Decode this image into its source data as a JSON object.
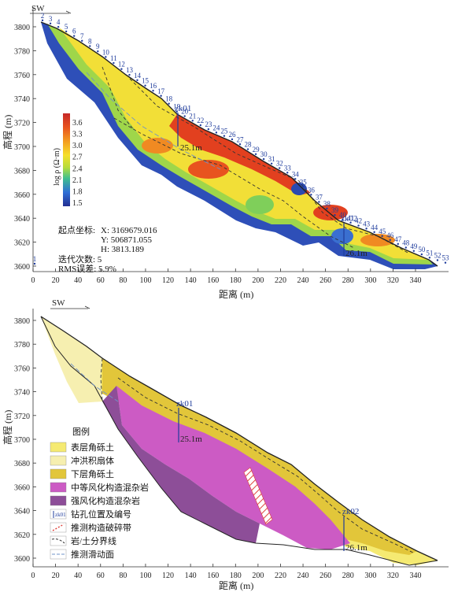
{
  "top_panel": {
    "direction_label": "SW",
    "y_axis_label": "高程 (m)",
    "x_axis_label": "距离 (m)",
    "y_ticks": [
      "3600",
      "3620",
      "3640",
      "3660",
      "3680",
      "3700",
      "3720",
      "3740",
      "3760",
      "3780",
      "3800"
    ],
    "x_ticks": [
      "0",
      "20",
      "40",
      "60",
      "80",
      "100",
      "120",
      "140",
      "160",
      "180",
      "200",
      "220",
      "240",
      "260",
      "280",
      "300",
      "320",
      "340"
    ],
    "colorbar_label": "log ρ (Ω·m)",
    "colorbar_ticks": [
      "3.6",
      "3.3",
      "3.0",
      "2.7",
      "2.4",
      "2.1",
      "1.8",
      "1.5"
    ],
    "electrodes": [
      "1",
      "2",
      "3",
      "4",
      "5",
      "6",
      "7",
      "8",
      "9",
      "10",
      "11",
      "12",
      "13",
      "14",
      "15",
      "16",
      "17",
      "18",
      "19",
      "20",
      "21",
      "22",
      "23",
      "24",
      "25",
      "26",
      "27",
      "28",
      "29",
      "30",
      "31",
      "32",
      "33",
      "34",
      "35",
      "36",
      "37",
      "38",
      "39",
      "40",
      "41",
      "42",
      "43",
      "44",
      "45",
      "46",
      "47",
      "48",
      "49",
      "50",
      "51",
      "52",
      "53"
    ],
    "boreholes": [
      {
        "name": "zk01",
        "depth": "25.1m"
      },
      {
        "name": "zk02",
        "depth": "26.1m"
      }
    ],
    "info": {
      "start_label": "起点坐标:",
      "x_line": "X:  3169679.016",
      "y_line": "Y:   506871.055",
      "h_line": "H:  3813.189",
      "iter_line": "迭代次数:  5",
      "rms_line": "RMS误差:  5.9%"
    }
  },
  "bottom_panel": {
    "direction_label": "SW",
    "y_axis_label": "高程 (m)",
    "x_axis_label": "距离 (m)",
    "y_ticks": [
      "3600",
      "3620",
      "3640",
      "3660",
      "3680",
      "3700",
      "3720",
      "3740",
      "3760",
      "3780",
      "3800"
    ],
    "x_ticks": [
      "0",
      "20",
      "40",
      "60",
      "80",
      "100",
      "120",
      "140",
      "160",
      "180",
      "200",
      "220",
      "240",
      "260",
      "280",
      "300",
      "320",
      "340"
    ],
    "boreholes": [
      {
        "name": "zk01",
        "depth": "25.1m"
      },
      {
        "name": "zk02",
        "depth": "26.1m"
      }
    ],
    "legend": {
      "title": "图例",
      "items": [
        {
          "label": "表层角砾土",
          "color": "#f5ea72"
        },
        {
          "label": "冲洪积扇体",
          "color": "#f6efb0"
        },
        {
          "label": "下层角砾土",
          "color": "#e2c63a"
        },
        {
          "label": "中等风化构造混杂岩",
          "color": "#cc5bc4"
        },
        {
          "label": "强风化构造混杂岩",
          "color": "#8d4e98"
        },
        {
          "label": "钻孔位置及编号",
          "symbol": "zk01"
        },
        {
          "label": "推测构造破碎带"
        },
        {
          "label": "岩/土分界线"
        },
        {
          "label": "推测滑动面"
        }
      ]
    }
  }
}
